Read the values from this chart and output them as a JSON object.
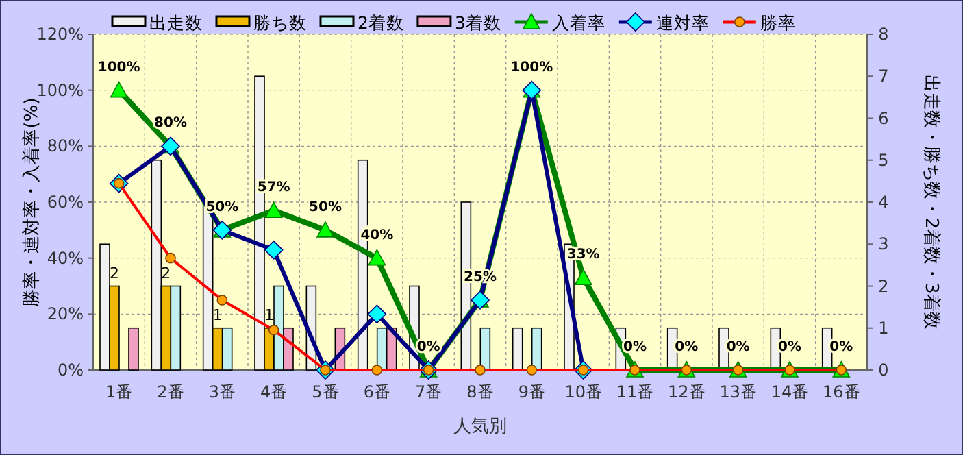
{
  "chart_data": {
    "type": "bar",
    "xlabel": "人気別",
    "ylabel": "勝率・連対率・入着率(%)",
    "y2label": "出走数・勝ち数・2着数・3着数",
    "categories": [
      "1番",
      "2番",
      "3番",
      "4番",
      "5番",
      "6番",
      "7番",
      "8番",
      "9番",
      "10番",
      "11番",
      "12番",
      "13番",
      "14番",
      "16番"
    ],
    "series": [
      {
        "name": "出走数",
        "axis": "y2",
        "color": "#f0f0f0",
        "values": [
          3,
          5,
          4,
          7,
          2,
          5,
          2,
          4,
          1,
          3,
          1,
          1,
          1,
          1,
          1
        ]
      },
      {
        "name": "勝ち数",
        "axis": "y2",
        "color": "#f0b800",
        "values": [
          2,
          2,
          1,
          1,
          0,
          0,
          0,
          0,
          0,
          0,
          0,
          0,
          0,
          0,
          0
        ],
        "value_labels": [
          "2",
          "2",
          "1",
          "1",
          null,
          null,
          null,
          null,
          null,
          null,
          null,
          null,
          null,
          null,
          null
        ]
      },
      {
        "name": "2着数",
        "axis": "y2",
        "color": "#c0f0f0",
        "values": [
          0,
          2,
          1,
          2,
          0,
          1,
          0,
          1,
          1,
          0,
          0,
          0,
          0,
          0,
          0
        ]
      },
      {
        "name": "3着数",
        "axis": "y2",
        "color": "#f0a0c0",
        "values": [
          1,
          0,
          0,
          1,
          1,
          1,
          0,
          0,
          0,
          0,
          0,
          0,
          0,
          0,
          0
        ]
      },
      {
        "name": "入着率",
        "type": "line",
        "marker": "triangle",
        "color": "#008000",
        "values": [
          100,
          80,
          50,
          57,
          50,
          40,
          0,
          25,
          100,
          33,
          0,
          0,
          0,
          0,
          0
        ],
        "value_labels": [
          "100%",
          "80%",
          "50%",
          "57%",
          "50%",
          "40%",
          "0%",
          "25%",
          "100%",
          "33%",
          "0%",
          "0%",
          "0%",
          "0%",
          "0%"
        ]
      },
      {
        "name": "連対率",
        "type": "line",
        "marker": "diamond",
        "color": "#000080",
        "values": [
          66.7,
          80,
          50,
          42.9,
          0,
          20,
          0,
          25,
          100,
          0,
          null,
          null,
          null,
          null,
          null
        ]
      },
      {
        "name": "勝率",
        "type": "line",
        "marker": "circle",
        "color": "#ff0000",
        "values": [
          66.7,
          40,
          25,
          14.3,
          0,
          0,
          0,
          0,
          0,
          0,
          0,
          0,
          0,
          0,
          0
        ]
      }
    ],
    "ylim": [
      0,
      120
    ],
    "yticks": [
      {
        "value": 0,
        "label": "0%"
      },
      {
        "value": 20,
        "label": "20%"
      },
      {
        "value": 40,
        "label": "40%"
      },
      {
        "value": 60,
        "label": "60%"
      },
      {
        "value": 80,
        "label": "80%"
      },
      {
        "value": 100,
        "label": "100%"
      },
      {
        "value": 120,
        "label": "120%"
      }
    ],
    "y2lim": [
      0,
      8
    ],
    "y2ticks": [
      0,
      1,
      2,
      3,
      4,
      5,
      6,
      7,
      8
    ],
    "grid": true,
    "legend": "top"
  }
}
